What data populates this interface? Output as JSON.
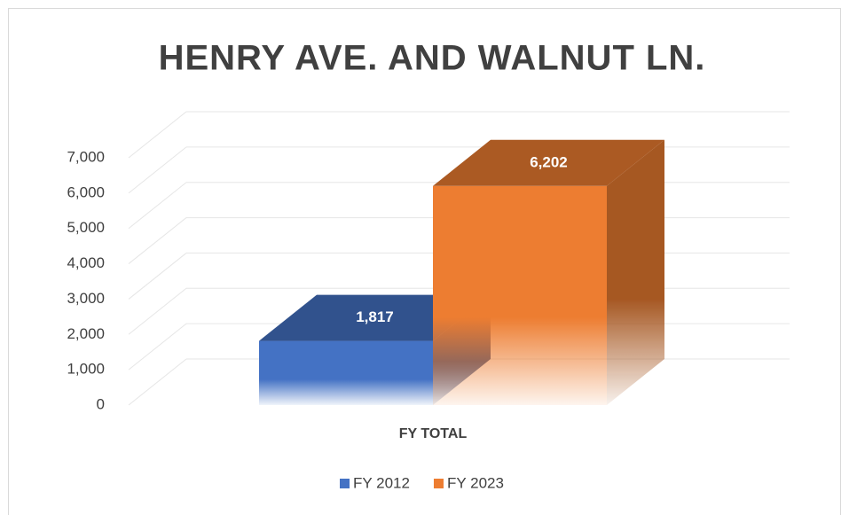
{
  "chart_data": {
    "type": "bar3d",
    "title": "HENRY AVE. AND WALNUT LN.",
    "categories": [
      "FY TOTAL"
    ],
    "series": [
      {
        "name": "FY 2012",
        "color": "#4472c4",
        "values": [
          1817
        ],
        "value_labels": [
          "1,817"
        ]
      },
      {
        "name": "FY 2023",
        "color": "#ed7d31",
        "values": [
          6202
        ],
        "value_labels": [
          "6,202"
        ]
      }
    ],
    "ylim": [
      0,
      7000
    ],
    "yticks": [
      0,
      {
        "value": 1000,
        "label": "1,000"
      },
      {
        "value": 2000,
        "label": "2,000"
      },
      {
        "value": 3000,
        "label": "3,000"
      },
      {
        "value": 4000,
        "label": "4,000"
      },
      {
        "value": 5000,
        "label": "5,000"
      },
      {
        "value": 6000,
        "label": "6,000"
      },
      {
        "value": 7000,
        "label": "7,000"
      }
    ],
    "grid": true,
    "legend": "bottom"
  }
}
